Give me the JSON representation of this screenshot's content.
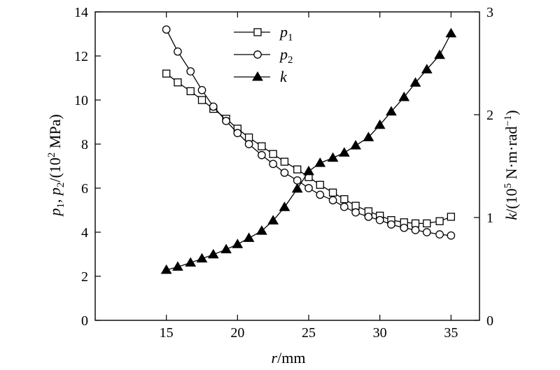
{
  "chart_data": {
    "type": "line",
    "xlabel_parts": {
      "var": "r",
      "unit": "/mm"
    },
    "ylabel_left_parts": {
      "t1": "p",
      "s1": "1",
      "t2": ", ",
      "t3": "p",
      "s2": "2",
      "t4": "/(10",
      "sup": "2",
      "t5": " MPa)"
    },
    "ylabel_right_parts": {
      "t1": "k",
      "t2": "/(10",
      "sup": "5",
      "t3": " N·m·rad",
      "sup2": "−1",
      "t4": ")"
    },
    "xlim": [
      10,
      37
    ],
    "ylim_left": [
      0,
      14
    ],
    "ylim_right": [
      0,
      3
    ],
    "x_ticks": [
      15,
      20,
      25,
      30,
      35
    ],
    "y_ticks_left": [
      0,
      2,
      4,
      6,
      8,
      10,
      12,
      14
    ],
    "y_ticks_right": [
      0,
      1,
      2,
      3
    ],
    "legend_position": "top-center",
    "grid": false,
    "series": [
      {
        "key": "p1",
        "name": "p",
        "sub": "1",
        "axis": "left",
        "marker": "square-open",
        "x": [
          15,
          15.8,
          16.7,
          17.5,
          18.3,
          19.2,
          20,
          20.8,
          21.7,
          22.5,
          23.3,
          24.2,
          25,
          25.8,
          26.7,
          27.5,
          28.3,
          29.2,
          30,
          30.8,
          31.7,
          32.5,
          33.3,
          34.2,
          35
        ],
        "values": [
          11.2,
          10.8,
          10.4,
          10.0,
          9.6,
          9.15,
          8.7,
          8.3,
          7.9,
          7.55,
          7.2,
          6.85,
          6.5,
          6.15,
          5.8,
          5.5,
          5.2,
          4.95,
          4.75,
          4.55,
          4.45,
          4.4,
          4.4,
          4.5,
          4.7
        ]
      },
      {
        "key": "p2",
        "name": "p",
        "sub": "2",
        "axis": "left",
        "marker": "circle-open",
        "x": [
          15,
          15.8,
          16.7,
          17.5,
          18.3,
          19.2,
          20,
          20.8,
          21.7,
          22.5,
          23.3,
          24.2,
          25,
          25.8,
          26.7,
          27.5,
          28.3,
          29.2,
          30,
          30.8,
          31.7,
          32.5,
          33.3,
          34.2,
          35
        ],
        "values": [
          13.2,
          12.2,
          11.3,
          10.45,
          9.7,
          9.05,
          8.5,
          8.0,
          7.5,
          7.1,
          6.7,
          6.35,
          6.0,
          5.7,
          5.45,
          5.15,
          4.9,
          4.7,
          4.55,
          4.35,
          4.2,
          4.1,
          4.0,
          3.9,
          3.85
        ]
      },
      {
        "key": "k",
        "name": "k",
        "sub": "",
        "axis": "right",
        "marker": "triangle-filled",
        "x": [
          15,
          15.8,
          16.7,
          17.5,
          18.3,
          19.2,
          20,
          20.8,
          21.7,
          22.5,
          23.3,
          24.2,
          25,
          25.8,
          26.7,
          27.5,
          28.3,
          29.2,
          30,
          30.8,
          31.7,
          32.5,
          33.3,
          34.2,
          35
        ],
        "values": [
          0.49,
          0.52,
          0.56,
          0.6,
          0.64,
          0.69,
          0.74,
          0.8,
          0.87,
          0.97,
          1.1,
          1.28,
          1.45,
          1.53,
          1.58,
          1.63,
          1.7,
          1.78,
          1.9,
          2.03,
          2.17,
          2.31,
          2.44,
          2.58,
          2.79
        ]
      }
    ]
  }
}
